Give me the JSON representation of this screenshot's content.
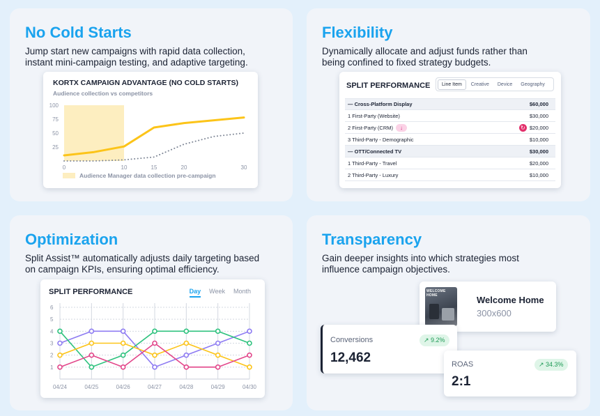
{
  "panels": {
    "cold": {
      "title": "No Cold Starts",
      "desc_line1": "Jump start new campaigns with rapid data collection,",
      "desc_line2": "instant mini-campaign testing, and adaptive targeting."
    },
    "flex": {
      "title": "Flexibility",
      "desc_line1": "Dynamically allocate and adjust funds rather than",
      "desc_line2": "being confined to fixed strategy budgets."
    },
    "opt": {
      "title": "Optimization",
      "desc_line1": "Split Assist™ automatically adjusts daily targeting based",
      "desc_line2": "on campaign KPIs, ensuring optimal efficiency."
    },
    "trans": {
      "title": "Transparency",
      "desc_line1": "Gain deeper insights into which strategies most",
      "desc_line2": "influence campaign objectives."
    }
  },
  "cold_chart": {
    "title": "KORTX CAMPAIGN ADVANTAGE (NO COLD STARTS)",
    "subtitle": "Audience collection vs competitors",
    "legend": "Audience Manager data collection pre-campaign",
    "highlight_color": "#fdeec0"
  },
  "split_table": {
    "title": "SPLIT PERFORMANCE",
    "tabs": [
      "Line Item",
      "Creative",
      "Device",
      "Geography"
    ],
    "rows": [
      {
        "label": "— Cross-Platform Display",
        "amount": "$60,000",
        "group": true
      },
      {
        "label": "1  First-Party (Website)",
        "amount": "$30,000",
        "group": false
      },
      {
        "label": "2  First-Party (CRM)",
        "amount": "$20,000",
        "group": false
      },
      {
        "label": "3  Third-Party - Demographic",
        "amount": "$10,000",
        "group": false
      },
      {
        "label": "— OTT/Connected TV",
        "amount": "$30,000",
        "group": true
      },
      {
        "label": "1  Third-Party - Travel",
        "amount": "$20,000",
        "group": false
      },
      {
        "label": "2  Third-Party - Luxury",
        "amount": "$10,000",
        "group": false
      }
    ],
    "icons": {
      "crm_badge": "arrow-down-icon",
      "crm_action": "refresh-icon"
    }
  },
  "opt_chart": {
    "title": "SPLIT PERFORMANCE",
    "ranges": [
      "Day",
      "Week",
      "Month"
    ],
    "active_range": "Day"
  },
  "transparency": {
    "creative": {
      "name": "Welcome Home",
      "size": "300x600",
      "thumb_text": "WELCOME HOME"
    },
    "conversions": {
      "label": "Conversions",
      "value": "12,462",
      "change": "↗ 9.2%"
    },
    "roas": {
      "label": "ROAS",
      "value": "2:1",
      "change": "↗ 34.3%"
    }
  },
  "chart_data": [
    {
      "type": "line",
      "title": "KORTX CAMPAIGN ADVANTAGE (NO COLD STARTS)",
      "subtitle": "Audience collection vs competitors",
      "x_ticks": [
        0,
        10,
        15,
        20,
        30
      ],
      "y_ticks": [
        25,
        50,
        75,
        100
      ],
      "ylim": [
        0,
        100
      ],
      "xlim": [
        0,
        30
      ],
      "highlight_range": [
        0,
        10
      ],
      "series": [
        {
          "style": "solid",
          "color": "#fcc419",
          "x": [
            0,
            5,
            10,
            15,
            20,
            25,
            30
          ],
          "y": [
            10,
            16,
            26,
            60,
            68,
            73,
            78
          ]
        },
        {
          "style": "dotted",
          "color": "#7f8796",
          "x": [
            0,
            5,
            10,
            15,
            20,
            25,
            30
          ],
          "y": [
            0,
            0,
            2,
            7,
            30,
            44,
            50
          ]
        }
      ],
      "legend": [
        "Audience Manager data collection pre-campaign"
      ]
    },
    {
      "type": "line",
      "title": "SPLIT PERFORMANCE",
      "categories": [
        "04/24",
        "04/25",
        "04/26",
        "04/27",
        "04/28",
        "04/29",
        "04/30"
      ],
      "ylim": [
        0,
        6
      ],
      "y_ticks": [
        1,
        2,
        3,
        4,
        5,
        6
      ],
      "grid": true,
      "series": [
        {
          "color": "#8e7cf2",
          "values": [
            3,
            4,
            4,
            1,
            2,
            3,
            4
          ]
        },
        {
          "color": "#2ec27e",
          "values": [
            4,
            1,
            2,
            4,
            4,
            4,
            3
          ]
        },
        {
          "color": "#fcc419",
          "values": [
            2,
            3,
            3,
            2,
            3,
            2,
            1
          ]
        },
        {
          "color": "#e2468a",
          "values": [
            1,
            2,
            1,
            3,
            1,
            1,
            2
          ]
        }
      ]
    }
  ]
}
